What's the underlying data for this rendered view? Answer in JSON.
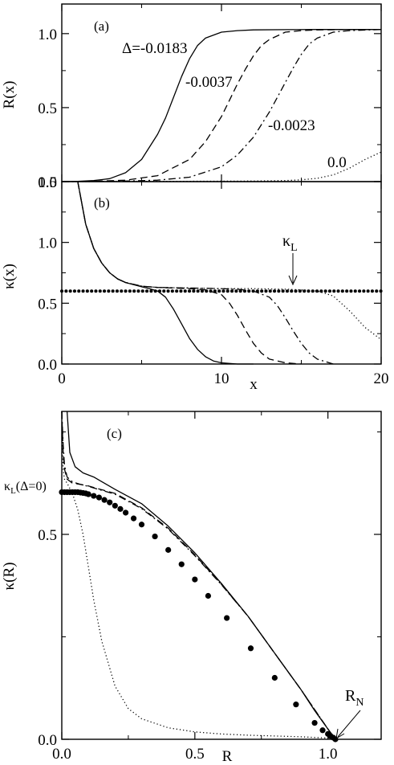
{
  "chart_data": [
    {
      "panel": "(a)",
      "type": "line",
      "xlim": [
        0,
        20
      ],
      "ylim": [
        0,
        1.2
      ],
      "ylabel": "R(x)",
      "yticks": [
        "0.0",
        "0.5",
        "1.0"
      ],
      "x_tick_labels_shown": false,
      "series": [
        {
          "name": "Δ=-0.0183",
          "style": "solid",
          "x": [
            0,
            1,
            2,
            3,
            4,
            5,
            6,
            6.5,
            7,
            7.5,
            8,
            8.5,
            9,
            10,
            11,
            12,
            14,
            16,
            18,
            20
          ],
          "y": [
            0,
            0.002,
            0.007,
            0.02,
            0.06,
            0.15,
            0.32,
            0.43,
            0.57,
            0.71,
            0.83,
            0.92,
            0.97,
            1.01,
            1.02,
            1.025,
            1.027,
            1.028,
            1.028,
            1.028
          ]
        },
        {
          "name": "-0.0037",
          "style": "dashed",
          "x": [
            0,
            2,
            4,
            6,
            8,
            9,
            10,
            10.5,
            11,
            11.5,
            12,
            12.5,
            13,
            14,
            15,
            16,
            18,
            20
          ],
          "y": [
            0,
            0.002,
            0.01,
            0.04,
            0.15,
            0.27,
            0.44,
            0.55,
            0.66,
            0.76,
            0.85,
            0.92,
            0.96,
            1.01,
            1.02,
            1.025,
            1.028,
            1.028
          ]
        },
        {
          "name": "-0.0023",
          "style": "dashdot",
          "x": [
            0,
            2,
            4,
            6,
            8,
            10,
            11,
            12,
            13,
            13.5,
            14,
            14.5,
            15,
            15.5,
            16,
            17,
            18,
            20
          ],
          "y": [
            0,
            0.001,
            0.004,
            0.01,
            0.03,
            0.1,
            0.18,
            0.3,
            0.47,
            0.57,
            0.67,
            0.77,
            0.86,
            0.93,
            0.97,
            1.01,
            1.02,
            1.028
          ]
        },
        {
          "name": "0.0",
          "style": "dotted",
          "x": [
            0,
            4,
            8,
            12,
            14,
            15,
            16,
            17,
            18,
            19,
            20
          ],
          "y": [
            0,
            0.001,
            0.002,
            0.004,
            0.007,
            0.012,
            0.022,
            0.045,
            0.09,
            0.15,
            0.2
          ]
        }
      ],
      "labels": [
        "(a)",
        "Δ=-0.0183",
        "-0.0037",
        "-0.0023",
        "0.0"
      ]
    },
    {
      "panel": "(b)",
      "type": "line",
      "xlim": [
        0,
        20
      ],
      "ylim": [
        0,
        1.5
      ],
      "xlabel": "x",
      "ylabel": "κ(x)",
      "xticks": [
        "0",
        "10",
        "20"
      ],
      "yticks": [
        "0.0",
        "0.5",
        "1.0",
        "1.5"
      ],
      "kappa_L": 0.6,
      "kappa_L_label": "κ",
      "kappa_L_subscript": "L",
      "series": [
        {
          "name": "Δ=-0.0183",
          "style": "solid",
          "x": [
            1,
            1.5,
            2,
            2.5,
            3,
            3.5,
            4,
            5,
            5.5,
            6,
            6.5,
            7,
            7.5,
            8,
            8.5,
            9,
            9.5,
            10,
            11,
            12
          ],
          "y": [
            1.5,
            1.15,
            0.95,
            0.83,
            0.75,
            0.7,
            0.67,
            0.635,
            0.62,
            0.6,
            0.55,
            0.45,
            0.33,
            0.21,
            0.12,
            0.06,
            0.025,
            0.01,
            0.0,
            0.0
          ]
        },
        {
          "name": "-0.0037",
          "style": "dashed",
          "x": [
            1,
            1.5,
            2,
            2.5,
            3,
            3.5,
            4,
            5,
            6,
            7,
            8,
            9,
            10,
            10.5,
            11,
            11.5,
            12,
            12.5,
            13,
            14,
            15
          ],
          "y": [
            1.5,
            1.15,
            0.95,
            0.83,
            0.75,
            0.7,
            0.67,
            0.64,
            0.63,
            0.625,
            0.62,
            0.61,
            0.57,
            0.5,
            0.4,
            0.28,
            0.17,
            0.09,
            0.04,
            0.01,
            0.0
          ]
        },
        {
          "name": "-0.0023",
          "style": "dashdot",
          "x": [
            1,
            1.5,
            2,
            2.5,
            3,
            3.5,
            4,
            5,
            6,
            8,
            10,
            11,
            12,
            13,
            13.5,
            14,
            14.5,
            15,
            15.5,
            16,
            17
          ],
          "y": [
            1.5,
            1.15,
            0.95,
            0.83,
            0.75,
            0.7,
            0.67,
            0.64,
            0.63,
            0.625,
            0.62,
            0.615,
            0.6,
            0.55,
            0.48,
            0.38,
            0.27,
            0.17,
            0.09,
            0.04,
            0.0
          ]
        },
        {
          "name": "0.0",
          "style": "dotted",
          "x": [
            1,
            1.5,
            2,
            2.5,
            3,
            3.5,
            4,
            5,
            6,
            8,
            10,
            12,
            14,
            15,
            16,
            17,
            18,
            19,
            20
          ],
          "y": [
            1.5,
            1.15,
            0.95,
            0.83,
            0.75,
            0.7,
            0.67,
            0.64,
            0.63,
            0.625,
            0.62,
            0.62,
            0.615,
            0.61,
            0.6,
            0.56,
            0.44,
            0.3,
            0.2
          ]
        }
      ],
      "labels": [
        "(b)"
      ]
    },
    {
      "panel": "(c)",
      "type": "line",
      "xlim": [
        0,
        1.2
      ],
      "ylim": [
        0,
        0.8
      ],
      "xlabel": "R",
      "ylabel": "κ(R)",
      "xticks": [
        "0.0",
        "0.5",
        "1.0"
      ],
      "yticks": [
        "0.0",
        "0.5"
      ],
      "kappa_L_zero": 0.6,
      "kappa_L_zero_label": {
        "base": "κ",
        "sub": "L",
        "rest": "(Δ=0)"
      },
      "R_N": {
        "base": "R",
        "sub": "N",
        "x": 1.028
      },
      "series": [
        {
          "name": "Δ=-0.0183",
          "style": "solid",
          "x": [
            0.02,
            0.03,
            0.05,
            0.08,
            0.12,
            0.2,
            0.3,
            0.4,
            0.5,
            0.6,
            0.7,
            0.8,
            0.9,
            0.95,
            1.0,
            1.028
          ],
          "y": [
            0.8,
            0.7,
            0.665,
            0.65,
            0.64,
            0.61,
            0.575,
            0.52,
            0.455,
            0.38,
            0.3,
            0.21,
            0.12,
            0.07,
            0.025,
            0.0
          ]
        },
        {
          "name": "-0.0037",
          "style": "dashed",
          "x": [
            0.0,
            0.005,
            0.01,
            0.02,
            0.04,
            0.07,
            0.1,
            0.2,
            0.3,
            0.4,
            0.5,
            0.6,
            0.7,
            0.8,
            0.9,
            1.0,
            1.028
          ],
          "y": [
            0.8,
            0.7,
            0.66,
            0.635,
            0.625,
            0.622,
            0.618,
            0.6,
            0.565,
            0.515,
            0.45,
            0.378,
            0.3,
            0.21,
            0.12,
            0.025,
            0.0
          ]
        },
        {
          "name": "-0.0023",
          "style": "dashdot",
          "x": [
            0.0,
            0.005,
            0.01,
            0.02,
            0.04,
            0.07,
            0.1,
            0.2,
            0.3,
            0.4,
            0.5,
            0.6,
            0.7,
            0.8,
            0.9,
            1.0,
            1.028
          ],
          "y": [
            0.8,
            0.72,
            0.67,
            0.64,
            0.628,
            0.622,
            0.617,
            0.598,
            0.563,
            0.513,
            0.448,
            0.377,
            0.3,
            0.21,
            0.12,
            0.025,
            0.0
          ]
        },
        {
          "name": "0.0",
          "style": "dotted",
          "x": [
            0.0,
            0.002,
            0.005,
            0.01,
            0.02,
            0.04,
            0.06,
            0.08,
            0.1,
            0.12,
            0.15,
            0.2,
            0.25,
            0.3,
            0.4,
            0.5,
            0.6,
            0.7,
            0.8,
            0.9,
            1.0,
            1.028
          ],
          "y": [
            0.8,
            0.72,
            0.66,
            0.635,
            0.625,
            0.6,
            0.56,
            0.5,
            0.42,
            0.34,
            0.24,
            0.13,
            0.075,
            0.05,
            0.028,
            0.018,
            0.013,
            0.01,
            0.008,
            0.006,
            0.003,
            0.0
          ]
        },
        {
          "name": "κ_L markers",
          "style": "markers",
          "x": [
            0.0,
            0.01,
            0.02,
            0.03,
            0.04,
            0.05,
            0.06,
            0.07,
            0.08,
            0.09,
            0.1,
            0.12,
            0.14,
            0.16,
            0.18,
            0.2,
            0.22,
            0.24,
            0.27,
            0.3,
            0.35,
            0.4,
            0.45,
            0.5,
            0.55,
            0.62,
            0.71,
            0.8,
            0.88,
            0.95,
            0.98,
            1.0,
            1.01,
            1.02,
            1.028
          ],
          "y": [
            0.603,
            0.603,
            0.603,
            0.603,
            0.603,
            0.603,
            0.603,
            0.602,
            0.601,
            0.6,
            0.598,
            0.594,
            0.59,
            0.584,
            0.578,
            0.57,
            0.562,
            0.553,
            0.539,
            0.524,
            0.495,
            0.462,
            0.427,
            0.39,
            0.35,
            0.296,
            0.222,
            0.15,
            0.085,
            0.04,
            0.022,
            0.013,
            0.008,
            0.004,
            0.0
          ]
        }
      ],
      "labels": [
        "(c)"
      ]
    }
  ]
}
